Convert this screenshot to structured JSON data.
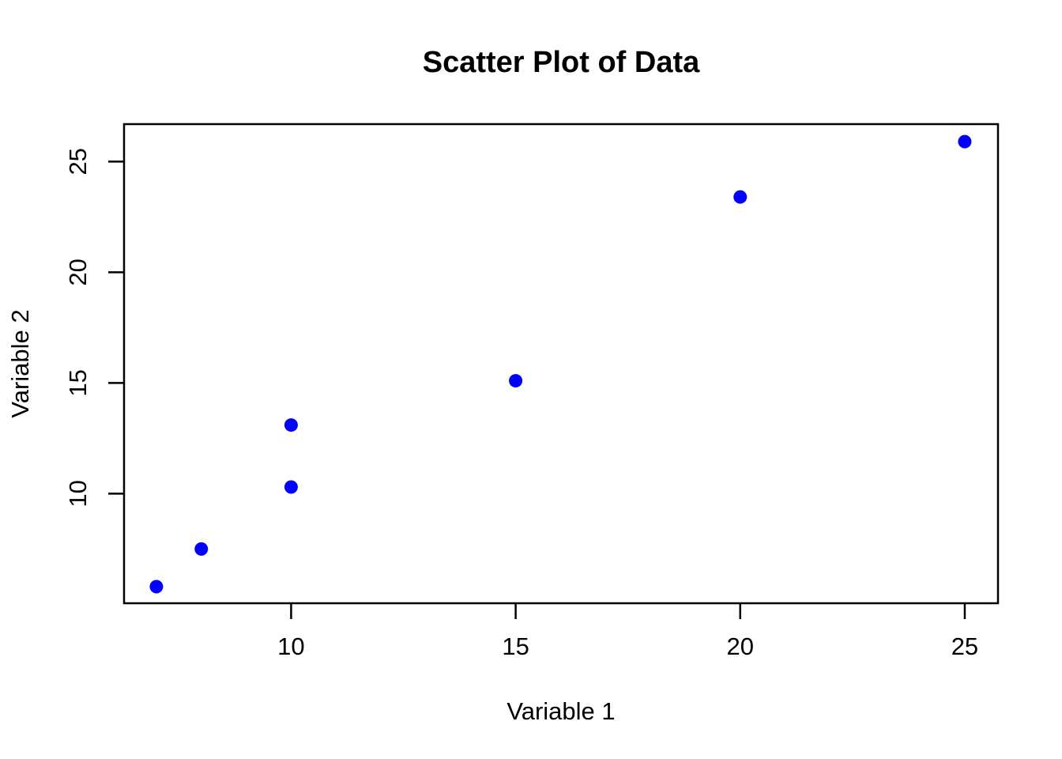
{
  "chart_data": {
    "type": "scatter",
    "title": "Scatter Plot of Data",
    "xlabel": "Variable 1",
    "ylabel": "Variable 2",
    "points": [
      {
        "x": 7,
        "y": 5.8
      },
      {
        "x": 8,
        "y": 7.5
      },
      {
        "x": 10,
        "y": 10.3
      },
      {
        "x": 10,
        "y": 13.1
      },
      {
        "x": 15,
        "y": 15.1
      },
      {
        "x": 20,
        "y": 23.4
      },
      {
        "x": 25,
        "y": 25.9
      }
    ],
    "x_ticks": [
      10,
      15,
      20,
      25
    ],
    "y_ticks": [
      10,
      15,
      20,
      25
    ],
    "xlim": [
      6.28,
      25.74
    ],
    "ylim": [
      5.05,
      26.69
    ],
    "point_color": "#0000FF",
    "axis_color": "#000000",
    "background_color": "#FFFFFF",
    "grid": false
  }
}
